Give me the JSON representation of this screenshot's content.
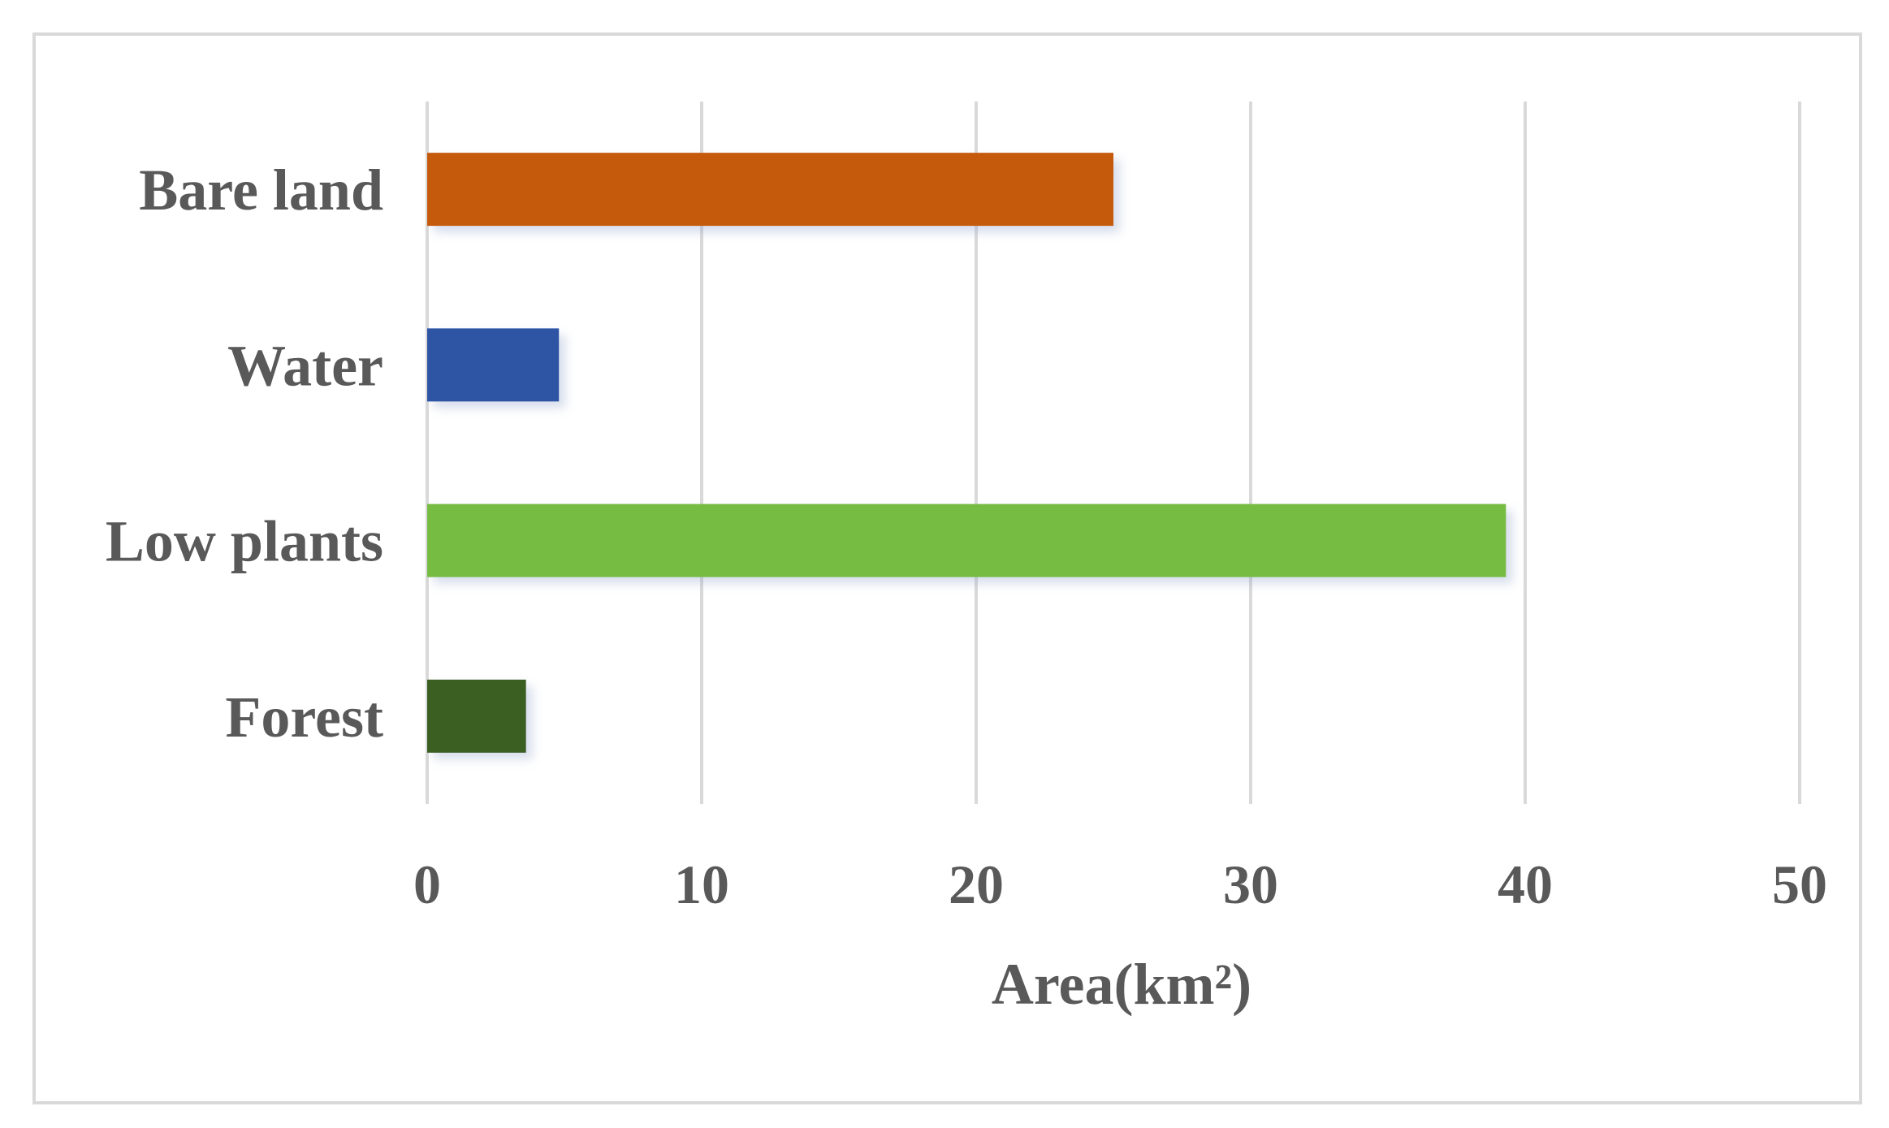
{
  "chart_data": {
    "type": "bar",
    "orientation": "horizontal",
    "categories": [
      "Bare land",
      "Water",
      "Low plants",
      "Forest"
    ],
    "values": [
      25,
      4.8,
      39.3,
      3.6
    ],
    "colors": [
      "#c55a11",
      "#2f55a4",
      "#76bc43",
      "#3b5e22"
    ],
    "xlabel": "Area(km²)",
    "xlim": [
      0,
      50
    ],
    "xticks": [
      0,
      10,
      20,
      30,
      40,
      50
    ],
    "grid": true,
    "legend": "none"
  }
}
